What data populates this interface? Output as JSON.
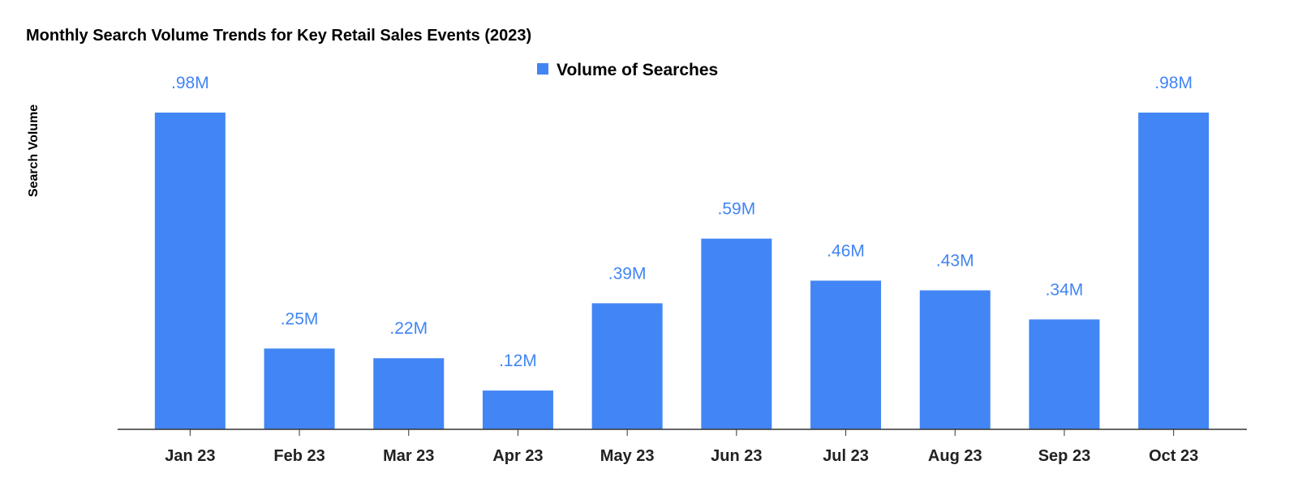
{
  "chart_data": {
    "type": "bar",
    "title": "Monthly Search Volume Trends for Key Retail Sales Events (2023)",
    "xlabel": "",
    "ylabel": "Search Volume",
    "categories": [
      "Jan 23",
      "Feb 23",
      "Mar 23",
      "Apr 23",
      "May 23",
      "Jun 23",
      "Jul 23",
      "Aug 23",
      "Sep 23",
      "Oct 23"
    ],
    "series": [
      {
        "name": "Volume of Searches",
        "values": [
          0.98,
          0.25,
          0.22,
          0.12,
          0.39,
          0.59,
          0.46,
          0.43,
          0.34,
          0.98
        ],
        "labels": [
          ".98M",
          ".25M",
          ".22M",
          ".12M",
          ".39M",
          ".59M",
          ".46M",
          ".43M",
          ".34M",
          ".98M"
        ],
        "color": "#4285f4"
      }
    ],
    "unit": "M",
    "ylim": [
      0,
      1
    ],
    "grid": false,
    "legend": "top-center"
  }
}
